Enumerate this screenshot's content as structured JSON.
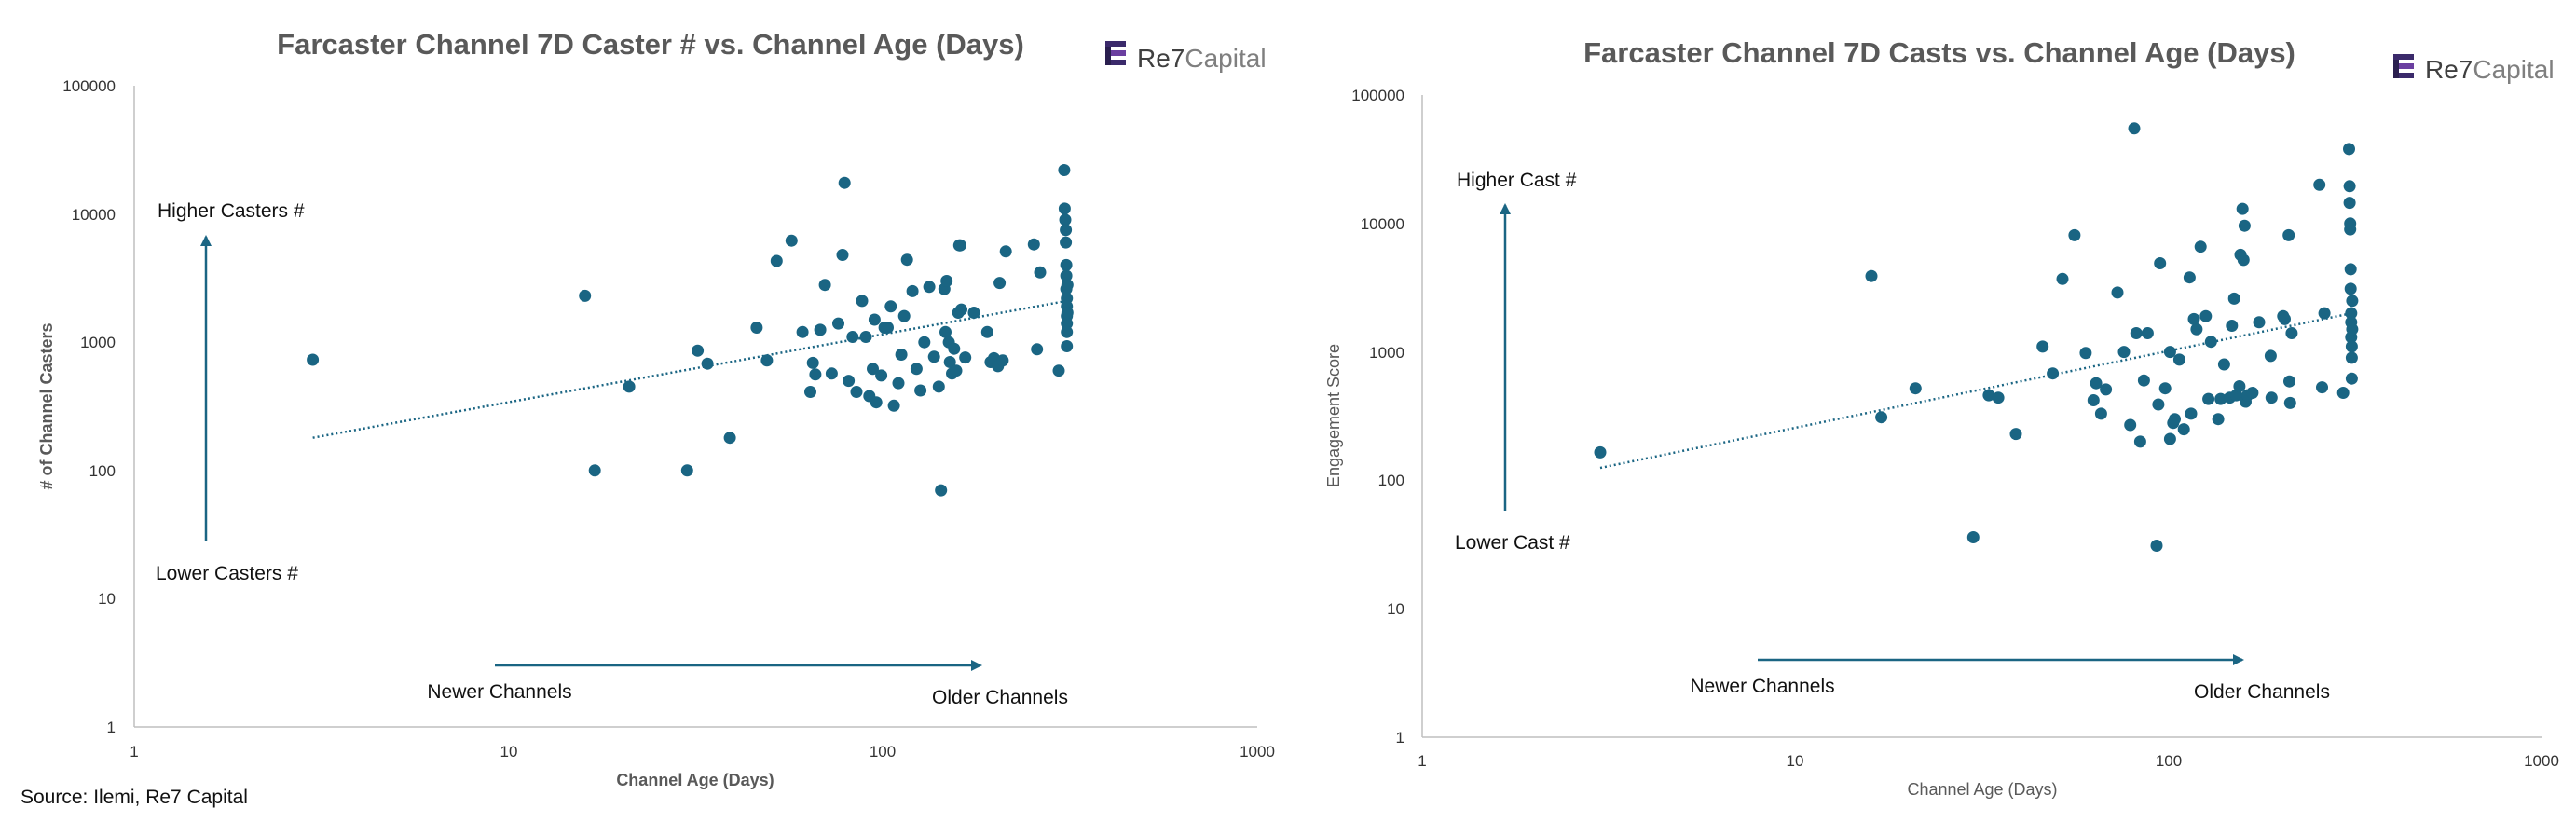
{
  "source_note": "Source: Ilemi, Re7 Capital",
  "logo": {
    "brand_a": "Re7",
    "brand_b": "Capital"
  },
  "colors": {
    "marker": "#1a6583",
    "trend": "#1a6583",
    "arrow": "#1a6583",
    "axis": "#bfbfbf"
  },
  "chart_data": [
    {
      "type": "scatter",
      "title": "Farcaster Channel 7D Caster #  vs. Channel Age (Days)",
      "xlabel": "Channel Age (Days)",
      "ylabel": "# of Channel Casters",
      "xscale": "log",
      "yscale": "log",
      "xlim": [
        1,
        1000
      ],
      "ylim": [
        1,
        100000
      ],
      "xticks": [
        "1",
        "10",
        "100",
        "1000"
      ],
      "yticks": [
        "1",
        "10",
        "100",
        "1000",
        "10000",
        "100000"
      ],
      "grid": false,
      "trendline": {
        "style": "dotted",
        "from": [
          3,
          180
        ],
        "to": [
          310,
          2100
        ]
      },
      "annotations": {
        "up_label": "Higher Casters #",
        "down_label": "Lower Casters #",
        "left_label": "Newer Channels",
        "right_label": "Older Channels"
      },
      "points": [
        [
          3,
          730
        ],
        [
          16,
          2300
        ],
        [
          17,
          100
        ],
        [
          21,
          450
        ],
        [
          30,
          100
        ],
        [
          32,
          860
        ],
        [
          34,
          680
        ],
        [
          39,
          180
        ],
        [
          46,
          1300
        ],
        [
          49,
          720
        ],
        [
          52,
          4300
        ],
        [
          57,
          6200
        ],
        [
          61,
          1200
        ],
        [
          64,
          410
        ],
        [
          65,
          690
        ],
        [
          66,
          560
        ],
        [
          68,
          1250
        ],
        [
          70,
          2800
        ],
        [
          73,
          570
        ],
        [
          76,
          1400
        ],
        [
          78,
          4800
        ],
        [
          79,
          17500
        ],
        [
          81,
          500
        ],
        [
          83,
          1100
        ],
        [
          85,
          410
        ],
        [
          88,
          2100
        ],
        [
          90,
          1100
        ],
        [
          92,
          380
        ],
        [
          94,
          620
        ],
        [
          95,
          1500
        ],
        [
          96,
          340
        ],
        [
          99,
          550
        ],
        [
          101,
          1300
        ],
        [
          103,
          1300
        ],
        [
          105,
          1900
        ],
        [
          107,
          320
        ],
        [
          110,
          480
        ],
        [
          112,
          800
        ],
        [
          114,
          1600
        ],
        [
          116,
          4400
        ],
        [
          120,
          2500
        ],
        [
          123,
          620
        ],
        [
          126,
          420
        ],
        [
          129,
          1000
        ],
        [
          133,
          2700
        ],
        [
          137,
          770
        ],
        [
          141,
          450
        ],
        [
          143,
          70
        ],
        [
          146,
          2600
        ],
        [
          147,
          1200
        ],
        [
          148,
          3000
        ],
        [
          150,
          1000
        ],
        [
          151,
          700
        ],
        [
          153,
          570
        ],
        [
          155,
          890
        ],
        [
          157,
          600
        ],
        [
          159,
          1700
        ],
        [
          160,
          5700
        ],
        [
          161,
          5700
        ],
        [
          162,
          1800
        ],
        [
          166,
          760
        ],
        [
          175,
          1700
        ],
        [
          190,
          1200
        ],
        [
          194,
          700
        ],
        [
          198,
          750
        ],
        [
          203,
          650
        ],
        [
          205,
          2900
        ],
        [
          209,
          720
        ],
        [
          213,
          5100
        ],
        [
          253,
          5800
        ],
        [
          258,
          880
        ],
        [
          263,
          3500
        ],
        [
          295,
          600
        ],
        [
          305,
          22000
        ],
        [
          306,
          11000
        ],
        [
          307,
          9000
        ],
        [
          308,
          7500
        ],
        [
          308,
          6000
        ],
        [
          309,
          4000
        ],
        [
          309,
          3300
        ],
        [
          309,
          2600
        ],
        [
          310,
          2200
        ],
        [
          310,
          1900
        ],
        [
          310,
          1600
        ],
        [
          310,
          1400
        ],
        [
          310,
          1200
        ],
        [
          310,
          930
        ],
        [
          311,
          2800
        ],
        [
          311,
          1700
        ]
      ]
    },
    {
      "type": "scatter",
      "title": "Farcaster Channel 7D Casts  vs. Channel Age (Days)",
      "xlabel": "Channel Age (Days)",
      "ylabel": "Engagement Score",
      "xscale": "log",
      "yscale": "log",
      "xlim": [
        1,
        1000
      ],
      "ylim": [
        1,
        100000
      ],
      "xticks": [
        "1",
        "10",
        "100",
        "1000"
      ],
      "yticks": [
        "1",
        "10",
        "100",
        "1000",
        "10000",
        "100000"
      ],
      "grid": false,
      "trendline": {
        "style": "dotted",
        "from": [
          3,
          125
        ],
        "to": [
          310,
          2000
        ]
      },
      "annotations": {
        "up_label": "Higher Cast #",
        "down_label": "Lower Cast #",
        "left_label": "Newer Channels",
        "right_label": "Older Channels"
      },
      "points": [
        [
          3,
          165
        ],
        [
          16,
          3900
        ],
        [
          17,
          310
        ],
        [
          21,
          520
        ],
        [
          30,
          36
        ],
        [
          33,
          460
        ],
        [
          35,
          440
        ],
        [
          39,
          230
        ],
        [
          46,
          1100
        ],
        [
          49,
          680
        ],
        [
          52,
          3700
        ],
        [
          56,
          8100
        ],
        [
          60,
          980
        ],
        [
          63,
          420
        ],
        [
          64,
          570
        ],
        [
          66,
          330
        ],
        [
          68,
          510
        ],
        [
          73,
          2900
        ],
        [
          76,
          1000
        ],
        [
          79,
          270
        ],
        [
          81,
          55000
        ],
        [
          82,
          1400
        ],
        [
          84,
          200
        ],
        [
          86,
          600
        ],
        [
          88,
          1400
        ],
        [
          93,
          31
        ],
        [
          94,
          390
        ],
        [
          95,
          4900
        ],
        [
          98,
          520
        ],
        [
          101,
          210
        ],
        [
          101,
          1000
        ],
        [
          103,
          280
        ],
        [
          104,
          300
        ],
        [
          107,
          870
        ],
        [
          110,
          250
        ],
        [
          114,
          3800
        ],
        [
          115,
          330
        ],
        [
          117,
          1800
        ],
        [
          119,
          1500
        ],
        [
          122,
          6600
        ],
        [
          126,
          1900
        ],
        [
          128,
          430
        ],
        [
          130,
          1200
        ],
        [
          136,
          300
        ],
        [
          138,
          430
        ],
        [
          141,
          800
        ],
        [
          146,
          440
        ],
        [
          148,
          1600
        ],
        [
          150,
          2600
        ],
        [
          152,
          460
        ],
        [
          155,
          540
        ],
        [
          156,
          5700
        ],
        [
          158,
          13000
        ],
        [
          159,
          5200
        ],
        [
          160,
          9600
        ],
        [
          161,
          410
        ],
        [
          163,
          460
        ],
        [
          168,
          480
        ],
        [
          175,
          1700
        ],
        [
          188,
          930
        ],
        [
          189,
          440
        ],
        [
          203,
          1900
        ],
        [
          205,
          1800
        ],
        [
          210,
          8100
        ],
        [
          211,
          590
        ],
        [
          212,
          400
        ],
        [
          214,
          1400
        ],
        [
          254,
          20000
        ],
        [
          258,
          530
        ],
        [
          262,
          2000
        ],
        [
          294,
          480
        ],
        [
          305,
          38000
        ],
        [
          306,
          19500
        ],
        [
          306,
          14500
        ],
        [
          307,
          10000
        ],
        [
          307,
          9000
        ],
        [
          308,
          4400
        ],
        [
          308,
          3100
        ],
        [
          309,
          2000
        ],
        [
          309,
          1700
        ],
        [
          309,
          1300
        ],
        [
          310,
          1100
        ],
        [
          310,
          900
        ],
        [
          310,
          620
        ],
        [
          311,
          1500
        ],
        [
          311,
          2500
        ]
      ]
    }
  ]
}
